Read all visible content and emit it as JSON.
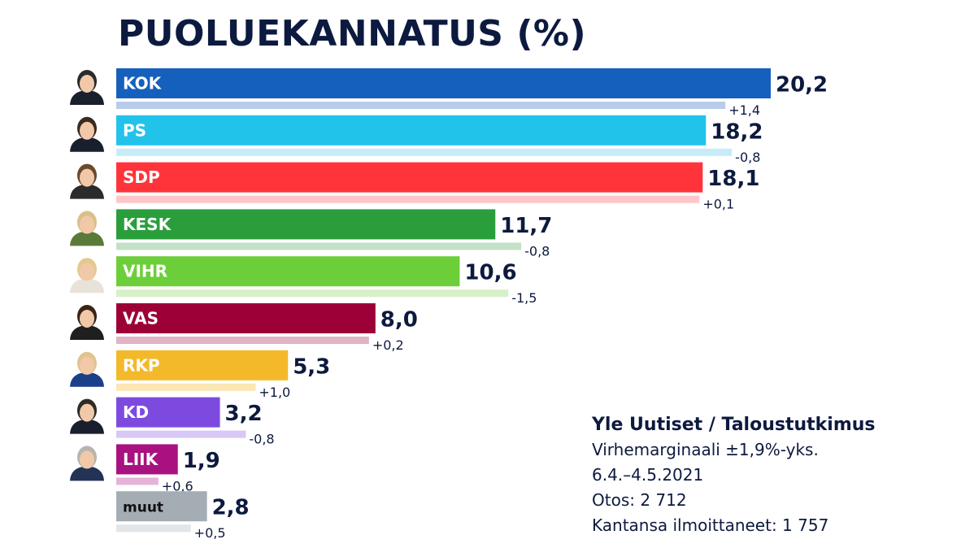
{
  "title": "PUOLUEKANNATUS (%)",
  "chart_data": {
    "type": "bar",
    "orientation": "horizontal",
    "title": "PUOLUEKANNATUS (%)",
    "categories": [
      "KOK",
      "PS",
      "SDP",
      "KESK",
      "VIHR",
      "VAS",
      "RKP",
      "KD",
      "LIIK",
      "muut"
    ],
    "values": [
      20.2,
      18.2,
      18.1,
      11.7,
      10.6,
      8.0,
      5.3,
      3.2,
      1.9,
      2.8
    ],
    "value_labels": [
      "20,2",
      "18,2",
      "18,1",
      "11,7",
      "10,6",
      "8,0",
      "5,3",
      "3,2",
      "1,9",
      "2,8"
    ],
    "previous_values": [
      18.8,
      19.0,
      18.0,
      12.5,
      12.1,
      7.8,
      4.3,
      4.0,
      1.3,
      2.3
    ],
    "change_labels": [
      "+1,4",
      "-0,8",
      "+0,1",
      "-0,8",
      "-1,5",
      "+0,2",
      "+1,0",
      "-0,8",
      "+0,6",
      "+0,5"
    ],
    "colors": [
      "#1560bd",
      "#22c3eb",
      "#ff343b",
      "#2a9e3b",
      "#6ccf3a",
      "#9c0037",
      "#f4b92a",
      "#7d4ae0",
      "#a8117f",
      "#a5adb4"
    ],
    "shadow_colors": [
      "#b9cde9",
      "#c7ecf8",
      "#ffc6c9",
      "#c2e1c6",
      "#d6f0c7",
      "#e0b3c5",
      "#fbe7b4",
      "#d8c8f5",
      "#e5b3d8",
      "#e2e6e8"
    ],
    "has_portrait": [
      true,
      true,
      true,
      true,
      true,
      true,
      true,
      true,
      true,
      false
    ],
    "xlim": [
      0,
      20.2
    ],
    "grid": false,
    "legend": "none"
  },
  "source": {
    "title": "Yle Uutiset / Taloustutkimus",
    "lines": [
      "Virhemarginaali ±1,9%-yks.",
      "6.4.–4.5.2021",
      "Otos: 2 712",
      "Kantansa ilmoittaneet: 1 757"
    ]
  }
}
